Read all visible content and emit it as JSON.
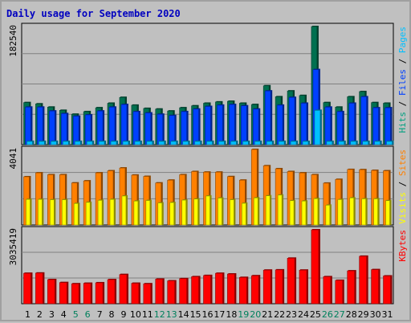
{
  "chart_data": {
    "type": "bar",
    "title": "Daily usage for September 2020",
    "categories": [
      "1",
      "2",
      "3",
      "4",
      "5",
      "6",
      "7",
      "8",
      "9",
      "10",
      "11",
      "12",
      "13",
      "14",
      "15",
      "16",
      "17",
      "18",
      "19",
      "20",
      "21",
      "22",
      "23",
      "24",
      "25",
      "26",
      "27",
      "28",
      "29",
      "30",
      "31"
    ],
    "weekend_days": [
      "5",
      "6",
      "12",
      "13",
      "19",
      "20",
      "26",
      "27"
    ],
    "panels": [
      {
        "id": "hits-files-pages",
        "ymax_label": "182540",
        "ymax": 182540,
        "ylabel_parts": [
          "Pages",
          "Files",
          "Hits"
        ],
        "series": [
          {
            "name": "Hits",
            "color": "#007050",
            "values": [
              65000,
              63000,
              58000,
              53000,
              47000,
              51000,
              57000,
              64000,
              73000,
              61000,
              56000,
              55000,
              52000,
              57000,
              60000,
              64000,
              66000,
              67000,
              64000,
              62000,
              91000,
              74000,
              83000,
              76000,
              182540,
              65000,
              58000,
              74000,
              82000,
              65000,
              64000
            ]
          },
          {
            "name": "Files",
            "color": "#0040ff",
            "values": [
              58000,
              58000,
              52000,
              48000,
              44000,
              46000,
              52000,
              58000,
              62000,
              51000,
              49000,
              47000,
              45000,
              51000,
              55000,
              59000,
              61000,
              62000,
              60000,
              55000,
              83000,
              61000,
              73000,
              64000,
              116000,
              58000,
              51000,
              64000,
              74000,
              57000,
              57000
            ]
          },
          {
            "name": "Pages",
            "color": "#00c0ff",
            "values": [
              5000,
              5000,
              5000,
              5000,
              5000,
              5000,
              5000,
              5000,
              5000,
              5000,
              5000,
              5000,
              5000,
              5000,
              5000,
              5000,
              5000,
              5000,
              5000,
              5000,
              5000,
              5000,
              5000,
              5000,
              53000,
              5000,
              5000,
              5000,
              5000,
              5000,
              5000
            ]
          }
        ]
      },
      {
        "id": "sites-visits",
        "ymax_label": "4041",
        "ymax": 4041,
        "ylabel_parts": [
          "Sites",
          "Visits"
        ],
        "series": [
          {
            "name": "Sites",
            "color": "#ff8000",
            "values": [
              2580,
              2790,
              2690,
              2690,
              2250,
              2360,
              2790,
              2900,
              3050,
              2670,
              2600,
              2250,
              2400,
              2690,
              2860,
              2830,
              2830,
              2590,
              2400,
              4041,
              3170,
              3010,
              2860,
              2790,
              2690,
              2240,
              2440,
              2970,
              2960,
              2920,
              2900
            ]
          },
          {
            "name": "Visits",
            "color": "#ffff00",
            "values": [
              1370,
              1370,
              1350,
              1350,
              1150,
              1210,
              1320,
              1370,
              1550,
              1280,
              1310,
              1180,
              1200,
              1330,
              1390,
              1550,
              1440,
              1350,
              1160,
              1450,
              1560,
              1600,
              1300,
              1280,
              1410,
              1060,
              1360,
              1450,
              1400,
              1400,
              1300
            ]
          }
        ]
      },
      {
        "id": "kbytes",
        "ymax_label": "3035419",
        "ymax": 3035419,
        "ylabel_parts": [
          "KBytes"
        ],
        "series": [
          {
            "name": "KBytes",
            "color": "#ff0000",
            "values": [
              1250000,
              1260000,
              990000,
              870000,
              820000,
              840000,
              860000,
              990000,
              1200000,
              840000,
              820000,
              1010000,
              940000,
              1030000,
              1110000,
              1160000,
              1250000,
              1220000,
              1080000,
              1150000,
              1380000,
              1390000,
              1870000,
              1380000,
              3035419,
              1110000,
              960000,
              1350000,
              1950000,
              1400000,
              1140000
            ]
          }
        ]
      }
    ],
    "colors": {
      "background": "#c0c0c0",
      "plot_bg": "#c0c0c0",
      "grid": "#808080",
      "title": "#0000ff",
      "axis_text": "#000000",
      "weekend_label": "#00805c"
    }
  }
}
